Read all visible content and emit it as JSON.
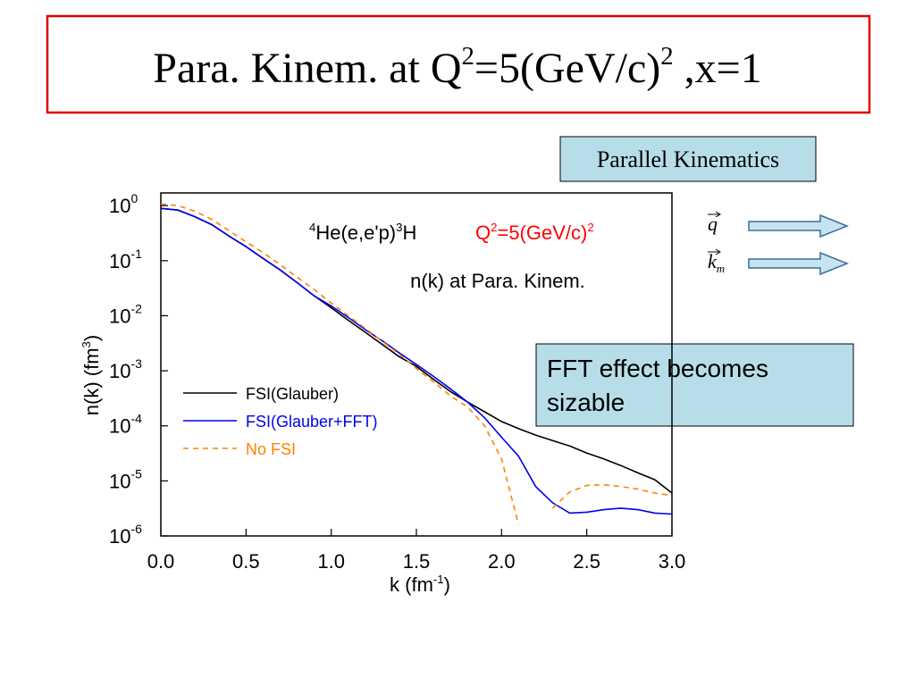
{
  "title": [
    {
      "text": "Para. Kinem. at Q"
    },
    {
      "sup": "2"
    },
    {
      "text": "=5(GeV/c)"
    },
    {
      "sup": "2"
    },
    {
      "text": " ,x=1"
    }
  ],
  "kinematics_box": "Parallel Kinematics",
  "vectors": [
    {
      "symbol": "q"
    },
    {
      "symbol": "k",
      "sub": "m"
    }
  ],
  "note_box": [
    "FFT effect becomes",
    "sizable"
  ],
  "chart_data": {
    "type": "line",
    "xlabel": [
      {
        "text": "k (fm"
      },
      {
        "sup": "-1"
      },
      {
        "text": ")"
      }
    ],
    "ylabel": [
      {
        "text": "n(k) (fm"
      },
      {
        "sup": "3"
      },
      {
        "text": ")"
      }
    ],
    "annotations": [
      {
        "segments": [
          {
            "sup": "4"
          },
          {
            "text": "He(e,e'p)"
          },
          {
            "sup": "3"
          },
          {
            "text": "H"
          }
        ],
        "color": "#000000"
      },
      {
        "segments": [
          {
            "text": "Q"
          },
          {
            "sup": "2"
          },
          {
            "text": "=5(GeV/c)"
          },
          {
            "sup": "2"
          }
        ],
        "color": "#ff0000"
      },
      {
        "segments": [
          {
            "text": "n(k) at Para. Kinem."
          }
        ],
        "color": "#000000"
      }
    ],
    "x": [
      0,
      0.1,
      0.2,
      0.3,
      0.4,
      0.5,
      0.6,
      0.7,
      0.8,
      0.9,
      1.0,
      1.1,
      1.2,
      1.3,
      1.4,
      1.5,
      1.6,
      1.7,
      1.8,
      1.9,
      2.0,
      2.1,
      2.2,
      2.3,
      2.4,
      2.5,
      2.6,
      2.7,
      2.8,
      2.9,
      3.0
    ],
    "series": [
      {
        "name": "FSI(Glauber)",
        "color": "#000000",
        "style": "solid",
        "values": [
          0.89,
          0.83,
          0.63,
          0.45,
          0.28,
          0.18,
          0.11,
          0.068,
          0.04,
          0.023,
          0.014,
          0.0083,
          0.005,
          0.003,
          0.0018,
          0.0012,
          0.0007,
          0.00042,
          0.00027,
          0.00018,
          0.00012,
          8.9e-05,
          6.8e-05,
          5.4e-05,
          4.3e-05,
          3.2e-05,
          2.5e-05,
          1.9e-05,
          1.4e-05,
          1.05e-05,
          6e-06
        ]
      },
      {
        "name": "FSI(Glauber+FFT)",
        "color": "#0000ee",
        "style": "solid",
        "values": [
          0.89,
          0.83,
          0.63,
          0.45,
          0.28,
          0.18,
          0.11,
          0.068,
          0.04,
          0.023,
          0.015,
          0.0093,
          0.0056,
          0.0035,
          0.0021,
          0.0013,
          0.00079,
          0.00047,
          0.00027,
          0.00014,
          6.2e-05,
          2.8e-05,
          7.9e-06,
          4e-06,
          2.6e-06,
          2.7e-06,
          3e-06,
          3.2e-06,
          3e-06,
          2.6e-06,
          2.5e-06
        ]
      },
      {
        "name": "No FSI",
        "color": "#ff8000",
        "style": "dashed",
        "values": [
          1.07,
          1.0,
          0.79,
          0.56,
          0.35,
          0.22,
          0.14,
          0.085,
          0.05,
          0.03,
          0.017,
          0.01,
          0.0059,
          0.0034,
          0.002,
          0.0011,
          0.00063,
          0.00035,
          0.00022,
          0.0001,
          2.5e-05,
          1.6e-06,
          null,
          3.2e-06,
          6.3e-06,
          8.3e-06,
          8.5e-06,
          7.9e-06,
          7.1e-06,
          6e-06,
          5.4e-06
        ]
      }
    ],
    "xlim": [
      0,
      3
    ],
    "xticks": [
      {
        "value": 0,
        "label": "0.0"
      },
      0.5,
      {
        "value": 1,
        "label": "1.0"
      },
      1.5,
      {
        "value": 2,
        "label": "2.0"
      },
      2.5,
      {
        "value": 3,
        "label": "3.0"
      }
    ],
    "ylim": [
      1e-06,
      1.7
    ],
    "ylog": true,
    "yticks": [
      {
        "value": 1e-06,
        "label": "10",
        "sup": "-6"
      },
      {
        "value": 1e-05,
        "label": "10",
        "sup": "-5"
      },
      {
        "value": 0.0001,
        "label": "10",
        "sup": "-4"
      },
      {
        "value": 0.001,
        "label": "10",
        "sup": "-3"
      },
      {
        "value": 0.01,
        "label": "10",
        "sup": "-2"
      },
      {
        "value": 0.1,
        "label": "10",
        "sup": "-1"
      },
      {
        "value": 1,
        "label": "10",
        "sup": "0"
      }
    ],
    "legend": "center left"
  }
}
